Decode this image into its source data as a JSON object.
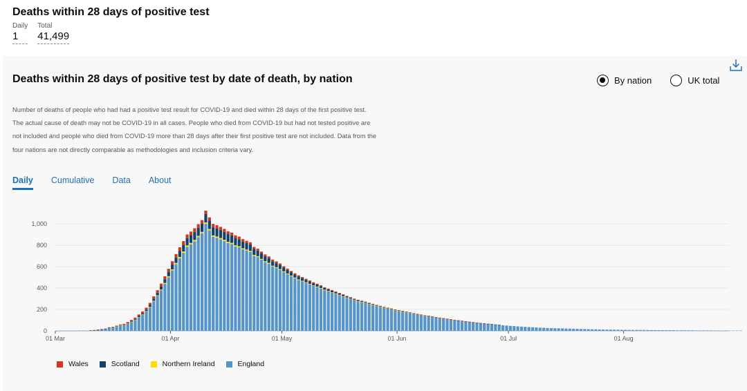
{
  "header": {
    "title": "Deaths within 28 days of positive test",
    "daily_label": "Daily",
    "daily_value": "1",
    "total_label": "Total",
    "total_value": "41,499"
  },
  "card": {
    "title": "Deaths within 28 days of positive test by date of death, by nation",
    "description": "Number of deaths of people who had had a positive test result for COVID-19 and died within 28 days of the first positive test. The actual cause of death may not be COVID-19 in all cases. People who died from COVID-19 but had not tested positive are not included and people who died from COVID-19 more than 28 days after their first positive test are not included. Data from the four nations are not directly comparable as methodologies and inclusion criteria vary.",
    "radios": [
      {
        "label": "By nation",
        "checked": true
      },
      {
        "label": "UK total",
        "checked": false
      }
    ],
    "tabs": [
      {
        "label": "Daily",
        "active": true
      },
      {
        "label": "Cumulative",
        "active": false
      },
      {
        "label": "Data",
        "active": false
      },
      {
        "label": "About",
        "active": false
      }
    ]
  },
  "icons": {
    "download": "download-icon"
  },
  "chart_data": {
    "type": "bar",
    "stacked": true,
    "title": "Deaths within 28 days of positive test by date of death, by nation",
    "x_start": "2020-03-01",
    "x_ticks": [
      "01 Mar",
      "01 Apr",
      "01 May",
      "01 Jun",
      "01 Jul",
      "01 Aug"
    ],
    "y_ticks": [
      "0",
      "200",
      "400",
      "600",
      "800",
      "1,000"
    ],
    "ylim": [
      0,
      1100
    ],
    "legend": [
      "Wales",
      "Scotland",
      "Northern Ireland",
      "England"
    ],
    "colors": {
      "England": "#5694ca",
      "Northern Ireland": "#ffdd00",
      "Scotland": "#12436d",
      "Wales": "#d4351c"
    },
    "series": [
      {
        "name": "England",
        "values": [
          1,
          2,
          2,
          1,
          2,
          2,
          3,
          4,
          2,
          5,
          6,
          11,
          14,
          19,
          27,
          31,
          40,
          49,
          53,
          68,
          84,
          102,
          126,
          151,
          181,
          221,
          276,
          326,
          380,
          440,
          502,
          565,
          624,
          679,
          730,
          786,
          809,
          837,
          875,
          912,
          1000,
          940,
          880,
          870,
          856,
          840,
          821,
          812,
          790,
          781,
          762,
          751,
          740,
          701,
          690,
          665,
          643,
          628,
          602,
          588,
          571,
          549,
          530,
          511,
          492,
          475,
          462,
          449,
          435,
          420,
          409,
          396,
          380,
          369,
          357,
          346,
          333,
          321,
          308,
          297,
          285,
          276,
          268,
          259,
          250,
          241,
          232,
          224,
          216,
          208,
          201,
          193,
          186,
          180,
          173,
          167,
          160,
          154,
          148,
          142,
          137,
          131,
          126,
          121,
          116,
          111,
          106,
          101,
          96,
          92,
          88,
          84,
          80,
          76,
          72,
          68,
          65,
          62,
          59,
          56,
          53,
          50,
          47,
          45,
          42,
          40,
          38,
          36,
          34,
          32,
          30,
          29,
          27,
          26,
          25,
          24,
          23,
          22,
          21,
          20,
          19,
          18,
          17,
          16,
          15,
          14,
          13,
          13,
          12,
          12,
          11,
          11,
          10,
          10,
          9,
          9,
          9,
          8,
          8,
          8,
          7,
          7,
          7,
          6,
          6,
          6,
          6,
          5,
          5,
          5,
          5,
          5,
          4,
          4,
          4,
          4,
          4,
          4,
          3,
          3,
          3,
          3,
          3,
          3,
          3
        ]
      },
      {
        "name": "Northern Ireland",
        "values": [
          0,
          0,
          0,
          0,
          0,
          0,
          0,
          0,
          0,
          0,
          0,
          0,
          0,
          0,
          1,
          1,
          1,
          1,
          1,
          1,
          2,
          2,
          3,
          3,
          4,
          4,
          5,
          6,
          7,
          8,
          9,
          10,
          11,
          12,
          12,
          13,
          13,
          13,
          13,
          13,
          13,
          12,
          12,
          12,
          12,
          11,
          11,
          11,
          10,
          10,
          10,
          9,
          9,
          9,
          8,
          8,
          8,
          8,
          7,
          7,
          7,
          7,
          6,
          6,
          6,
          6,
          6,
          5,
          5,
          5,
          5,
          5,
          5,
          4,
          4,
          4,
          4,
          4,
          4,
          4,
          3,
          3,
          3,
          3,
          3,
          3,
          3,
          2,
          2,
          2,
          2,
          2,
          2,
          2,
          2,
          2,
          1,
          1,
          1,
          1,
          1,
          1,
          1,
          1,
          1,
          1,
          1,
          1,
          1,
          1,
          0,
          0,
          0,
          0,
          0,
          0,
          0,
          0,
          0,
          0,
          0,
          0,
          0,
          0,
          0,
          0,
          0,
          0,
          0,
          0,
          0,
          0,
          0,
          0,
          0,
          0,
          0,
          0,
          0,
          0,
          0,
          0,
          0,
          0,
          0,
          0,
          0,
          0,
          0,
          0,
          0,
          0,
          0,
          0,
          0,
          0,
          0,
          0,
          0,
          0,
          0,
          0,
          0,
          0,
          0,
          0,
          0,
          0,
          0,
          0,
          0,
          0,
          0,
          0,
          0,
          0,
          0,
          0,
          0,
          0,
          0,
          0,
          0,
          0,
          0
        ]
      },
      {
        "name": "Scotland",
        "values": [
          0,
          0,
          0,
          0,
          0,
          0,
          0,
          0,
          0,
          0,
          1,
          1,
          1,
          1,
          2,
          2,
          3,
          4,
          5,
          6,
          7,
          8,
          10,
          12,
          14,
          17,
          20,
          24,
          29,
          34,
          39,
          45,
          51,
          57,
          63,
          68,
          72,
          75,
          76,
          77,
          78,
          78,
          77,
          76,
          75,
          74,
          72,
          70,
          68,
          66,
          63,
          60,
          58,
          55,
          52,
          50,
          47,
          44,
          42,
          40,
          38,
          35,
          33,
          31,
          29,
          27,
          25,
          23,
          22,
          20,
          19,
          17,
          16,
          15,
          14,
          13,
          12,
          11,
          10,
          9,
          8,
          8,
          7,
          7,
          6,
          6,
          5,
          5,
          4,
          4,
          4,
          3,
          3,
          3,
          3,
          2,
          2,
          2,
          2,
          2,
          2,
          2,
          1,
          1,
          1,
          1,
          1,
          1,
          1,
          1,
          1,
          1,
          1,
          1,
          1,
          1,
          1,
          1,
          1,
          1,
          0,
          0,
          0,
          0,
          0,
          0,
          0,
          0,
          0,
          0,
          0,
          0,
          0,
          0,
          0,
          0,
          0,
          0,
          0,
          0,
          0,
          0,
          0,
          0,
          0,
          0,
          0,
          0,
          0,
          0,
          0,
          0,
          0,
          0,
          0,
          0,
          0,
          0,
          0,
          0,
          0,
          0,
          0,
          0,
          0,
          0,
          0,
          0,
          0,
          0,
          0,
          0,
          0,
          0,
          0,
          0,
          0,
          0,
          0,
          0,
          0,
          0,
          0,
          0,
          0
        ]
      },
      {
        "name": "Wales",
        "values": [
          0,
          0,
          0,
          0,
          0,
          0,
          0,
          0,
          0,
          1,
          1,
          1,
          2,
          2,
          3,
          4,
          5,
          6,
          7,
          8,
          10,
          12,
          14,
          16,
          18,
          20,
          22,
          24,
          26,
          28,
          30,
          31,
          32,
          33,
          34,
          34,
          34,
          34,
          33,
          33,
          32,
          31,
          31,
          30,
          29,
          28,
          27,
          26,
          25,
          24,
          23,
          22,
          21,
          20,
          19,
          18,
          17,
          16,
          16,
          15,
          14,
          13,
          13,
          12,
          11,
          11,
          10,
          10,
          9,
          9,
          8,
          8,
          7,
          7,
          7,
          6,
          6,
          6,
          5,
          5,
          5,
          4,
          4,
          4,
          4,
          3,
          3,
          3,
          3,
          3,
          3,
          2,
          2,
          2,
          2,
          2,
          2,
          2,
          2,
          1,
          1,
          1,
          1,
          1,
          1,
          1,
          1,
          1,
          1,
          1,
          1,
          1,
          1,
          1,
          1,
          1,
          1,
          0,
          0,
          0,
          0,
          0,
          0,
          0,
          0,
          0,
          0,
          0,
          0,
          0,
          0,
          0,
          0,
          0,
          0,
          0,
          0,
          0,
          0,
          0,
          0,
          0,
          0,
          0,
          0,
          0,
          0,
          0,
          0,
          0,
          0,
          0,
          0,
          0,
          0,
          0,
          0,
          0,
          0,
          0,
          0,
          0,
          0,
          0,
          0,
          0,
          0,
          0,
          0,
          0,
          0,
          0,
          0,
          0,
          0,
          0,
          0,
          0,
          0,
          0,
          0,
          0,
          0,
          0,
          0
        ]
      }
    ]
  }
}
